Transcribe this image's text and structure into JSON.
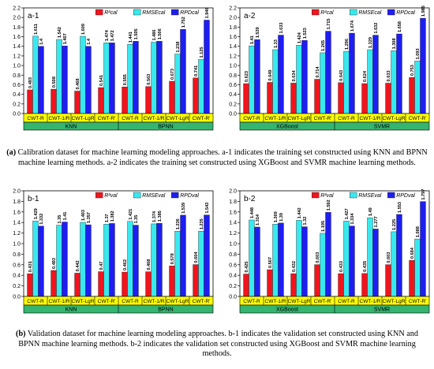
{
  "colors": {
    "r2": "#f2141c",
    "rmse": "#37e9ef",
    "rpd": "#1e1ef0",
    "cat_band": "#ffff00",
    "method_band": "#35b56e"
  },
  "legend": [
    "R²cal",
    "RMSEcal",
    "RPDcal",
    "R²val",
    "RMSEval",
    "RPDval"
  ],
  "captions": {
    "a_lead": "(a)",
    "a_text": " Calibration dataset for machine learning modeling approaches. a-1 indicates the training set constructed using KNN and BPNN machine learning methods. a-2 indicates the training set constructed using XGBoost and SVMR machine learning methods.",
    "b_lead": "(b)",
    "b_text": " Validation dataset for machine learning modeling approaches. b-1 indicates the validation set constructed using KNN and BPNN machine learning methods. b-2 indicates the validation set constructed using XGBoost and SVMR machine learning methods."
  },
  "chart_data": [
    {
      "id": "a-1",
      "type": "bar",
      "panel_label": "a-1",
      "ylim": [
        0,
        2.2
      ],
      "yticks": [
        0.0,
        0.2,
        0.4,
        0.6,
        0.8,
        1.0,
        1.2,
        1.4,
        1.6,
        1.8,
        2.0,
        2.2
      ],
      "categories": [
        "CWT-R",
        "CWT-1/R",
        "CWT-LgR",
        "CWT-R'",
        "CWT-R",
        "CWT-1/R",
        "CWT-LgR",
        "CWT-R'"
      ],
      "groups": [
        {
          "name": "KNN",
          "span": [
            0,
            4
          ]
        },
        {
          "name": "BPNN",
          "span": [
            4,
            8
          ]
        }
      ],
      "legend": [
        "R²cal",
        "RMSEcal",
        "RPDcal"
      ],
      "series": [
        {
          "name": "R²cal",
          "values": [
            0.493,
            0.508,
            0.468,
            0.541,
            0.555,
            0.563,
            0.673,
            0.741
          ]
        },
        {
          "name": "RMSEcal",
          "values": [
            1.611,
            1.542,
            1.609,
            1.474,
            1.441,
            1.486,
            1.238,
            1.125
          ]
        },
        {
          "name": "RPDcal",
          "values": [
            1.4,
            1.407,
            1.4,
            1.472,
            1.505,
            1.506,
            1.752,
            1.946
          ]
        }
      ]
    },
    {
      "id": "a-2",
      "type": "bar",
      "panel_label": "a-2",
      "ylim": [
        0,
        2.2
      ],
      "yticks": [
        0.0,
        0.2,
        0.4,
        0.6,
        0.8,
        1.0,
        1.2,
        1.4,
        1.6,
        1.8,
        2.0,
        2.2
      ],
      "categories": [
        "CWT-R",
        "CWT-1/R",
        "CWT-LgR",
        "CWT-R'",
        "CWT-R",
        "CWT-1/R",
        "CWT-LgR",
        "CWT-R'"
      ],
      "groups": [
        {
          "name": "XGBoost",
          "span": [
            0,
            4
          ]
        },
        {
          "name": "SVMR",
          "span": [
            4,
            8
          ]
        }
      ],
      "legend": [
        "R²cal",
        "RMSEcal",
        "RPDcal"
      ],
      "series": [
        {
          "name": "R²cal",
          "values": [
            0.623,
            0.649,
            0.634,
            0.714,
            0.643,
            0.624,
            0.633,
            0.753
          ]
        },
        {
          "name": "RMSEcal",
          "values": [
            1.41,
            1.33,
            1.424,
            1.265,
            1.296,
            1.329,
            1.308,
            1.093
          ]
        },
        {
          "name": "RPDcal",
          "values": [
            1.539,
            1.633,
            1.523,
            1.715,
            1.674,
            1.632,
            1.658,
            1.985
          ]
        }
      ]
    },
    {
      "id": "b-1",
      "type": "bar",
      "panel_label": "b-1",
      "ylim": [
        0,
        2.0
      ],
      "yticks": [
        0.0,
        0.2,
        0.4,
        0.6,
        0.8,
        1.0,
        1.2,
        1.4,
        1.6,
        1.8,
        2.0
      ],
      "categories": [
        "CWT-R",
        "CWT-1/R",
        "CWT-LgR",
        "CWT-R'",
        "CWT-R",
        "CWT-1/R",
        "CWT-LgR",
        "CWT-R'"
      ],
      "groups": [
        {
          "name": "KNN",
          "span": [
            0,
            4
          ]
        },
        {
          "name": "BPNN",
          "span": [
            4,
            8
          ]
        }
      ],
      "legend": [
        "R²val",
        "RMSEval",
        "RPDval"
      ],
      "series": [
        {
          "name": "R²val",
          "values": [
            0.431,
            0.493,
            0.442,
            0.47,
            0.462,
            0.468,
            0.578,
            0.604
          ]
        },
        {
          "name": "RMSEval",
          "values": [
            1.429,
            1.35,
            1.403,
            1.37,
            1.421,
            1.374,
            1.236,
            1.235
          ]
        },
        {
          "name": "RPDval",
          "values": [
            1.332,
            1.41,
            1.357,
            1.382,
            1.35,
            1.385,
            1.539,
            1.543
          ]
        }
      ]
    },
    {
      "id": "b-2",
      "type": "bar",
      "panel_label": "b-2",
      "ylim": [
        0,
        2.0
      ],
      "yticks": [
        0.0,
        0.2,
        0.4,
        0.6,
        0.8,
        1.0,
        1.2,
        1.4,
        1.6,
        1.8,
        2.0
      ],
      "categories": [
        "CWT-R",
        "CWT-1/R",
        "CWT-LgR",
        "CWT-R'",
        "CWT-R",
        "CWT-1/R",
        "CWT-LgR",
        "CWT-R'"
      ],
      "groups": [
        {
          "name": "XGBoost",
          "span": [
            0,
            4
          ]
        },
        {
          "name": "SVMR",
          "span": [
            4,
            8
          ]
        }
      ],
      "legend": [
        "R²val",
        "RMSEval",
        "RPDval"
      ],
      "series": [
        {
          "name": "R²val",
          "values": [
            0.425,
            0.507,
            0.432,
            0.603,
            0.433,
            0.435,
            0.603,
            0.684
          ]
        },
        {
          "name": "RMSEval",
          "values": [
            1.448,
            1.369,
            1.442,
            1.195,
            1.427,
            1.49,
            1.225,
            1.088
          ]
        },
        {
          "name": "RPDval",
          "values": [
            1.314,
            1.39,
            1.32,
            1.592,
            1.334,
            1.277,
            1.553,
            1.797
          ]
        }
      ]
    }
  ]
}
